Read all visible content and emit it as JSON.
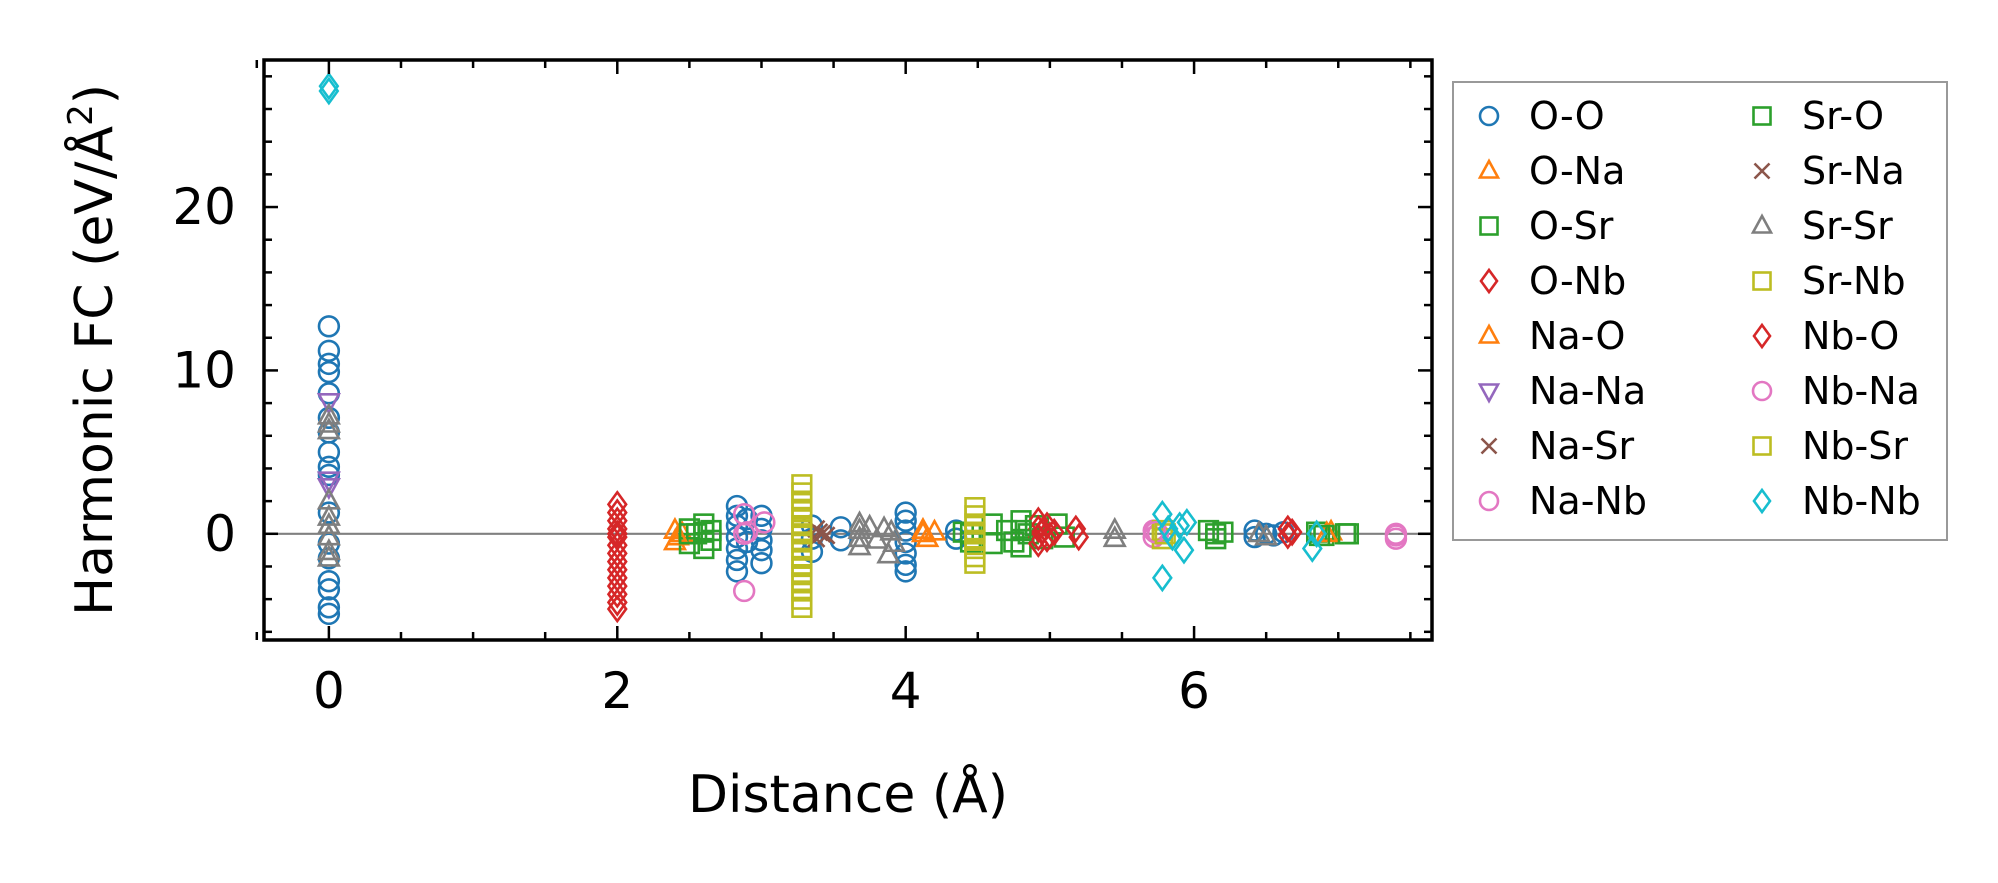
{
  "chart_data": {
    "type": "scatter",
    "title": "",
    "xlabel": "Distance (Å)",
    "ylabel_main": "Harmonic FC (eV/Å",
    "ylabel_sup": "2",
    "ylabel_close": ")",
    "xlim": [
      -0.45,
      7.65
    ],
    "ylim": [
      -6.5,
      29
    ],
    "xticks": [
      0,
      2,
      4,
      6
    ],
    "xtick_labels": [
      "0",
      "2",
      "4",
      "6"
    ],
    "yticks": [
      0,
      10,
      20
    ],
    "ytick_labels": [
      "0",
      "10",
      "20"
    ],
    "zero_line": 0,
    "legend_position": "outside-right",
    "series": [
      {
        "name": "O-O",
        "marker": "circle",
        "color": "#1f77b4",
        "points": [
          [
            0,
            12.7
          ],
          [
            0,
            11.2
          ],
          [
            0,
            10.4
          ],
          [
            0,
            9.9
          ],
          [
            0,
            8.6
          ],
          [
            0,
            7.1
          ],
          [
            0,
            6.2
          ],
          [
            0,
            5.0
          ],
          [
            0,
            4.1
          ],
          [
            0,
            3.6
          ],
          [
            0,
            1.3
          ],
          [
            0,
            -0.6
          ],
          [
            0,
            -1.5
          ],
          [
            0,
            -2.9
          ],
          [
            0,
            -3.4
          ],
          [
            0,
            -4.5
          ],
          [
            0,
            -4.9
          ],
          [
            2.83,
            1.7
          ],
          [
            2.83,
            1.1
          ],
          [
            2.83,
            0.5
          ],
          [
            2.83,
            -0.2
          ],
          [
            2.83,
            -0.9
          ],
          [
            2.83,
            -1.6
          ],
          [
            2.83,
            -2.3
          ],
          [
            2.9,
            0.9
          ],
          [
            2.9,
            -0.5
          ],
          [
            3.0,
            1.1
          ],
          [
            3.0,
            0.3
          ],
          [
            3.0,
            -0.4
          ],
          [
            3.0,
            -1.0
          ],
          [
            3.0,
            -1.8
          ],
          [
            3.35,
            0.5
          ],
          [
            3.35,
            -0.3
          ],
          [
            3.35,
            -1.1
          ],
          [
            3.55,
            0.4
          ],
          [
            3.55,
            -0.4
          ],
          [
            4.0,
            1.3
          ],
          [
            4.0,
            0.8
          ],
          [
            4.0,
            0.2
          ],
          [
            4.0,
            -0.5
          ],
          [
            4.0,
            -1.2
          ],
          [
            4.0,
            -1.9
          ],
          [
            4.0,
            -2.3
          ],
          [
            4.35,
            0.2
          ],
          [
            4.35,
            -0.3
          ],
          [
            6.42,
            0.2
          ],
          [
            6.42,
            -0.2
          ],
          [
            6.5,
            0.0
          ],
          [
            6.55,
            -0.1
          ],
          [
            6.62,
            0.1
          ]
        ]
      },
      {
        "name": "O-Na",
        "marker": "triangle-up",
        "color": "#ff7f0e",
        "points": [
          [
            2.4,
            0.2
          ],
          [
            2.4,
            -0.5
          ],
          [
            2.45,
            0.0
          ],
          [
            4.12,
            0.2
          ],
          [
            4.15,
            -0.3
          ],
          [
            6.95,
            0.1
          ]
        ]
      },
      {
        "name": "O-Sr",
        "marker": "square",
        "color": "#2ca02c",
        "points": [
          [
            2.5,
            0.3
          ],
          [
            2.5,
            -0.6
          ],
          [
            2.55,
            0.0
          ],
          [
            2.6,
            0.6
          ],
          [
            2.6,
            -0.9
          ],
          [
            2.65,
            0.2
          ],
          [
            2.65,
            -0.4
          ],
          [
            4.4,
            0.1
          ],
          [
            4.45,
            -0.5
          ],
          [
            4.6,
            0.6
          ],
          [
            4.6,
            -0.6
          ],
          [
            4.7,
            0.2
          ],
          [
            4.75,
            -0.5
          ],
          [
            4.8,
            0.8
          ],
          [
            4.8,
            -0.8
          ],
          [
            4.85,
            0.0
          ],
          [
            4.9,
            0.5
          ],
          [
            4.95,
            -0.3
          ],
          [
            5.05,
            0.6
          ],
          [
            5.1,
            -0.2
          ],
          [
            6.1,
            0.2
          ],
          [
            6.15,
            -0.3
          ],
          [
            6.2,
            0.1
          ],
          [
            6.85,
            0.1
          ],
          [
            6.9,
            -0.1
          ],
          [
            7.05,
            0.0
          ]
        ]
      },
      {
        "name": "O-Nb",
        "marker": "diamond",
        "color": "#d62728",
        "points": [
          [
            2.0,
            1.8
          ],
          [
            2.0,
            1.3
          ],
          [
            2.0,
            0.8
          ],
          [
            2.0,
            0.3
          ],
          [
            2.0,
            -0.2
          ],
          [
            2.0,
            -0.7
          ],
          [
            2.0,
            -1.2
          ],
          [
            2.0,
            -1.7
          ],
          [
            2.0,
            -2.2
          ],
          [
            2.0,
            -2.7
          ],
          [
            2.0,
            -3.2
          ],
          [
            2.0,
            -3.7
          ],
          [
            2.0,
            -4.2
          ],
          [
            2.0,
            -4.6
          ],
          [
            4.92,
            0.8
          ],
          [
            4.92,
            0.3
          ],
          [
            4.92,
            -0.2
          ],
          [
            4.92,
            -0.6
          ],
          [
            4.98,
            0.5
          ],
          [
            4.98,
            -0.3
          ],
          [
            5.03,
            0.1
          ],
          [
            5.18,
            0.3
          ],
          [
            5.2,
            -0.2
          ],
          [
            6.65,
            0.3
          ],
          [
            6.65,
            -0.1
          ]
        ]
      },
      {
        "name": "Na-O",
        "marker": "triangle-up",
        "color": "#ff7f0e",
        "points": [
          [
            2.42,
            -0.2
          ],
          [
            4.12,
            0.0
          ],
          [
            4.2,
            0.1
          ],
          [
            6.92,
            0.0
          ]
        ]
      },
      {
        "name": "Na-Na",
        "marker": "triangle-down",
        "color": "#9467bd",
        "points": [
          [
            0,
            8.1
          ],
          [
            0,
            3.3
          ],
          [
            0,
            2.9
          ]
        ]
      },
      {
        "name": "Na-Sr",
        "marker": "x",
        "color": "#8c564b",
        "points": [
          [
            3.38,
            0.3
          ],
          [
            3.38,
            -0.3
          ],
          [
            3.42,
            0.0
          ]
        ]
      },
      {
        "name": "Na-Nb",
        "marker": "circle",
        "color": "#e377c2",
        "points": [
          [
            2.88,
            1.2
          ],
          [
            2.88,
            0.0
          ],
          [
            2.88,
            -3.5
          ],
          [
            3.02,
            0.7
          ],
          [
            5.72,
            0.2
          ],
          [
            5.72,
            -0.2
          ],
          [
            5.75,
            0.0
          ],
          [
            7.4,
            0.0
          ],
          [
            7.4,
            -0.3
          ]
        ]
      },
      {
        "name": "Sr-O",
        "marker": "square",
        "color": "#2ca02c",
        "points": [
          [
            2.5,
            0.0
          ],
          [
            2.6,
            0.1
          ],
          [
            4.45,
            0.0
          ],
          [
            4.8,
            0.2
          ],
          [
            6.15,
            0.0
          ],
          [
            6.87,
            -0.1
          ],
          [
            7.07,
            0.0
          ]
        ]
      },
      {
        "name": "Sr-Na",
        "marker": "x",
        "color": "#8c564b",
        "points": [
          [
            3.4,
            0.1
          ],
          [
            3.45,
            -0.1
          ]
        ]
      },
      {
        "name": "Sr-Sr",
        "marker": "triangle-up",
        "color": "#7f7f7f",
        "points": [
          [
            0,
            7.2
          ],
          [
            0,
            6.7
          ],
          [
            0,
            6.3
          ],
          [
            0,
            2.0
          ],
          [
            0,
            1.0
          ],
          [
            0,
            0.5
          ],
          [
            0,
            -0.2
          ],
          [
            0,
            -1.1
          ],
          [
            0,
            -1.5
          ],
          [
            3.68,
            0.6
          ],
          [
            3.68,
            0.2
          ],
          [
            3.68,
            -0.3
          ],
          [
            3.68,
            -0.8
          ],
          [
            3.75,
            0.4
          ],
          [
            3.8,
            -0.4
          ],
          [
            3.85,
            0.3
          ],
          [
            3.88,
            -1.3
          ],
          [
            3.9,
            0.1
          ],
          [
            3.92,
            -0.6
          ],
          [
            5.45,
            0.2
          ],
          [
            5.45,
            -0.3
          ],
          [
            6.45,
            0.0
          ],
          [
            6.5,
            -0.2
          ]
        ]
      },
      {
        "name": "Sr-Nb",
        "marker": "square",
        "color": "#bcbd22",
        "points": [
          [
            3.28,
            3.0
          ],
          [
            3.28,
            2.5
          ],
          [
            3.28,
            2.0
          ],
          [
            3.28,
            1.5
          ],
          [
            3.28,
            1.0
          ],
          [
            3.28,
            0.5
          ],
          [
            3.28,
            0.0
          ],
          [
            3.28,
            -0.5
          ],
          [
            3.28,
            -1.0
          ],
          [
            3.28,
            -1.5
          ],
          [
            3.28,
            -2.0
          ],
          [
            3.28,
            -2.5
          ],
          [
            3.28,
            -3.0
          ],
          [
            3.28,
            -3.5
          ],
          [
            3.28,
            -4.0
          ],
          [
            3.28,
            -4.5
          ],
          [
            4.48,
            1.6
          ],
          [
            4.48,
            1.1
          ],
          [
            4.48,
            0.6
          ],
          [
            4.48,
            0.1
          ],
          [
            4.48,
            -0.4
          ],
          [
            4.48,
            -0.9
          ],
          [
            4.48,
            -1.4
          ],
          [
            4.48,
            -1.8
          ],
          [
            5.78,
            0.2
          ],
          [
            5.78,
            -0.3
          ]
        ]
      },
      {
        "name": "Nb-O",
        "marker": "diamond",
        "color": "#d62728",
        "points": [
          [
            2.0,
            0.0
          ],
          [
            4.95,
            0.2
          ],
          [
            5.0,
            -0.1
          ],
          [
            6.68,
            0.1
          ]
        ]
      },
      {
        "name": "Nb-Na",
        "marker": "circle",
        "color": "#e377c2",
        "points": [
          [
            2.9,
            0.1
          ],
          [
            5.73,
            0.1
          ],
          [
            7.4,
            -0.1
          ]
        ]
      },
      {
        "name": "Nb-Sr",
        "marker": "square",
        "color": "#bcbd22",
        "points": [
          [
            3.28,
            0.2
          ],
          [
            4.48,
            0.0
          ],
          [
            5.8,
            0.0
          ]
        ]
      },
      {
        "name": "Nb-Nb",
        "marker": "diamond",
        "color": "#17becf",
        "points": [
          [
            0,
            27.4
          ],
          [
            0,
            27.1
          ],
          [
            5.78,
            1.2
          ],
          [
            5.78,
            -2.7
          ],
          [
            5.82,
            0.3
          ],
          [
            5.85,
            -0.2
          ],
          [
            5.9,
            0.5
          ],
          [
            5.93,
            -1.0
          ],
          [
            5.95,
            0.7
          ],
          [
            6.82,
            -0.9
          ],
          [
            6.85,
            0.0
          ]
        ]
      }
    ]
  }
}
